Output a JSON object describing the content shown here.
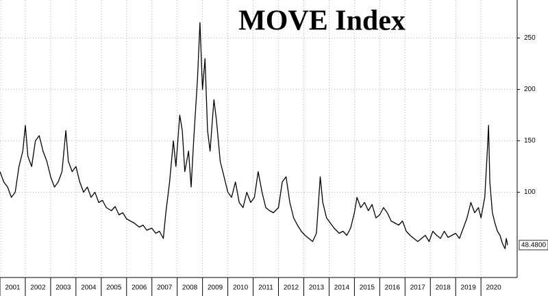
{
  "chart_data": {
    "type": "line",
    "title": "MOVE Index",
    "color": "#000000",
    "grid": true,
    "x": [
      2001.0,
      2001.15,
      2001.3,
      2001.45,
      2001.6,
      2001.75,
      2001.9,
      2002.0,
      2002.1,
      2002.25,
      2002.4,
      2002.55,
      2002.7,
      2002.85,
      2003.0,
      2003.15,
      2003.3,
      2003.45,
      2003.6,
      2003.7,
      2003.85,
      2004.0,
      2004.15,
      2004.3,
      2004.45,
      2004.6,
      2004.75,
      2004.9,
      2005.05,
      2005.2,
      2005.4,
      2005.55,
      2005.7,
      2005.85,
      2006.0,
      2006.15,
      2006.3,
      2006.5,
      2006.65,
      2006.8,
      2007.0,
      2007.15,
      2007.3,
      2007.45,
      2007.55,
      2007.7,
      2007.85,
      2007.95,
      2008.1,
      2008.2,
      2008.3,
      2008.45,
      2008.55,
      2008.65,
      2008.8,
      2008.9,
      2009.0,
      2009.1,
      2009.2,
      2009.3,
      2009.45,
      2009.55,
      2009.7,
      2009.85,
      2010.0,
      2010.15,
      2010.3,
      2010.45,
      2010.6,
      2010.75,
      2010.9,
      2011.05,
      2011.2,
      2011.35,
      2011.5,
      2011.65,
      2011.8,
      2012.0,
      2012.15,
      2012.3,
      2012.45,
      2012.6,
      2012.75,
      2012.9,
      2013.05,
      2013.2,
      2013.35,
      2013.5,
      2013.65,
      2013.75,
      2013.9,
      2014.05,
      2014.2,
      2014.4,
      2014.55,
      2014.7,
      2014.85,
      2015.0,
      2015.1,
      2015.25,
      2015.4,
      2015.55,
      2015.7,
      2015.85,
      2016.0,
      2016.15,
      2016.3,
      2016.45,
      2016.6,
      2016.75,
      2016.9,
      2017.05,
      2017.2,
      2017.35,
      2017.5,
      2017.65,
      2017.8,
      2017.95,
      2018.1,
      2018.25,
      2018.4,
      2018.55,
      2018.7,
      2018.85,
      2019.0,
      2019.15,
      2019.3,
      2019.45,
      2019.6,
      2019.75,
      2019.9,
      2020.0,
      2020.15,
      2020.25,
      2020.3,
      2020.35,
      2020.45,
      2020.55,
      2020.65,
      2020.75,
      2020.85,
      2020.95,
      2021.0,
      2021.05
    ],
    "values": [
      120,
      110,
      105,
      95,
      100,
      125,
      140,
      165,
      135,
      125,
      150,
      155,
      140,
      130,
      115,
      105,
      110,
      120,
      160,
      130,
      120,
      125,
      110,
      100,
      105,
      95,
      100,
      90,
      92,
      85,
      82,
      86,
      78,
      80,
      74,
      72,
      70,
      66,
      68,
      63,
      65,
      60,
      62,
      55,
      80,
      110,
      150,
      125,
      175,
      160,
      120,
      140,
      105,
      150,
      210,
      265,
      200,
      230,
      160,
      140,
      190,
      170,
      130,
      115,
      100,
      95,
      110,
      90,
      85,
      100,
      90,
      95,
      120,
      100,
      85,
      82,
      80,
      85,
      110,
      115,
      90,
      75,
      68,
      62,
      58,
      55,
      52,
      60,
      115,
      90,
      75,
      70,
      65,
      60,
      62,
      58,
      65,
      80,
      95,
      85,
      90,
      82,
      88,
      75,
      78,
      85,
      80,
      72,
      70,
      68,
      72,
      62,
      58,
      55,
      52,
      55,
      58,
      52,
      62,
      58,
      55,
      62,
      56,
      58,
      60,
      55,
      65,
      75,
      90,
      80,
      85,
      75,
      95,
      140,
      165,
      110,
      80,
      70,
      62,
      58,
      50,
      45,
      55,
      48.48
    ],
    "last_value_label": "48.4800",
    "xlim": [
      2001,
      2021.43
    ],
    "xticks": [
      2001,
      2002,
      2003,
      2004,
      2005,
      2006,
      2007,
      2008,
      2009,
      2010,
      2011,
      2012,
      2013,
      2014,
      2015,
      2016,
      2017,
      2018,
      2019,
      2020
    ],
    "ylim": [
      17,
      287
    ],
    "yticks": [
      100,
      150,
      200,
      250
    ]
  }
}
